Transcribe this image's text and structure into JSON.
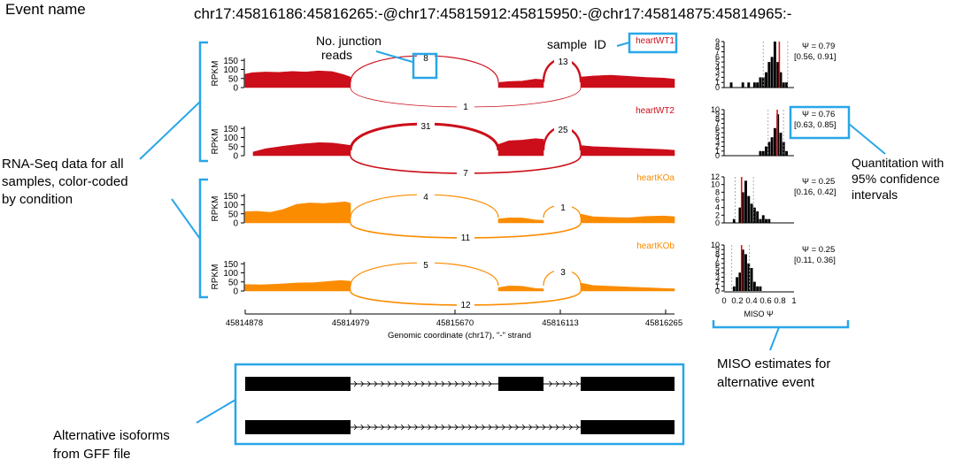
{
  "header": {
    "label": "Event name",
    "event_id": "chr17:45816186:45816265:-@chr17:45815912:45815950:-@chr17:45814875:45814965:-"
  },
  "colors": {
    "wt": "#cc0e1a",
    "ko": "#fb8c00",
    "annotation": "#29a6e8",
    "psi_line": "#e0141c",
    "black": "#000000"
  },
  "axes": {
    "ylabel": "RPKM",
    "yticks": [
      "150",
      "100",
      "50",
      "0"
    ],
    "xticks": [
      "45814878",
      "45814979",
      "45815670",
      "45816113",
      "45816265"
    ],
    "xlabel": "Genomic coordinate (chr17), \"-\" strand",
    "miso_xlabel": "MISO Ψ",
    "miso_xticks": [
      "0",
      "0.2",
      "0.4",
      "0.6",
      "0.8",
      "1"
    ]
  },
  "samples": [
    {
      "name": "heartWT1",
      "condition": "wt",
      "junctions": [
        "8",
        "13",
        "1"
      ],
      "psi": "Ψ = 0.79",
      "ci": "[0.56, 0.91]",
      "hist_yticks": [
        "9",
        "8",
        "7",
        "6",
        "5",
        "4",
        "3",
        "2",
        "1",
        "0"
      ]
    },
    {
      "name": "heartWT2",
      "condition": "wt",
      "junctions": [
        "31",
        "25",
        "7"
      ],
      "psi": "Ψ = 0.76",
      "ci": "[0.63, 0.85]",
      "hist_yticks": [
        "10",
        "9",
        "8",
        "7",
        "6",
        "5",
        "4",
        "3",
        "2",
        "1",
        "0"
      ]
    },
    {
      "name": "heartKOa",
      "condition": "ko",
      "junctions": [
        "4",
        "1",
        "11"
      ],
      "psi": "Ψ = 0.25",
      "ci": "[0.16, 0.42]",
      "hist_yticks": [
        "12",
        "10",
        "8",
        "6",
        "4",
        "2",
        "0"
      ]
    },
    {
      "name": "heartKOb",
      "condition": "ko",
      "junctions": [
        "5",
        "3",
        "12"
      ],
      "psi": "Ψ = 0.25",
      "ci": "[0.11, 0.36]",
      "hist_yticks": [
        "10",
        "9",
        "8",
        "7",
        "6",
        "5",
        "4",
        "3",
        "2",
        "1",
        "0"
      ]
    }
  ],
  "annotations": {
    "junction_reads_1": "No. junction",
    "junction_reads_2": "reads",
    "sample_id": "sample  ID",
    "rnaseq_1": "RNA-Seq data for all",
    "rnaseq_2": "samples, color-coded",
    "rnaseq_3": "by condition",
    "quant_1": "Quantitation with",
    "quant_2": "95% confidence",
    "quant_3": "intervals",
    "miso_1": "MISO estimates for",
    "miso_2": "alternative event",
    "isoforms_1": "Alternative isoforms",
    "isoforms_2": "from GFF file"
  }
}
